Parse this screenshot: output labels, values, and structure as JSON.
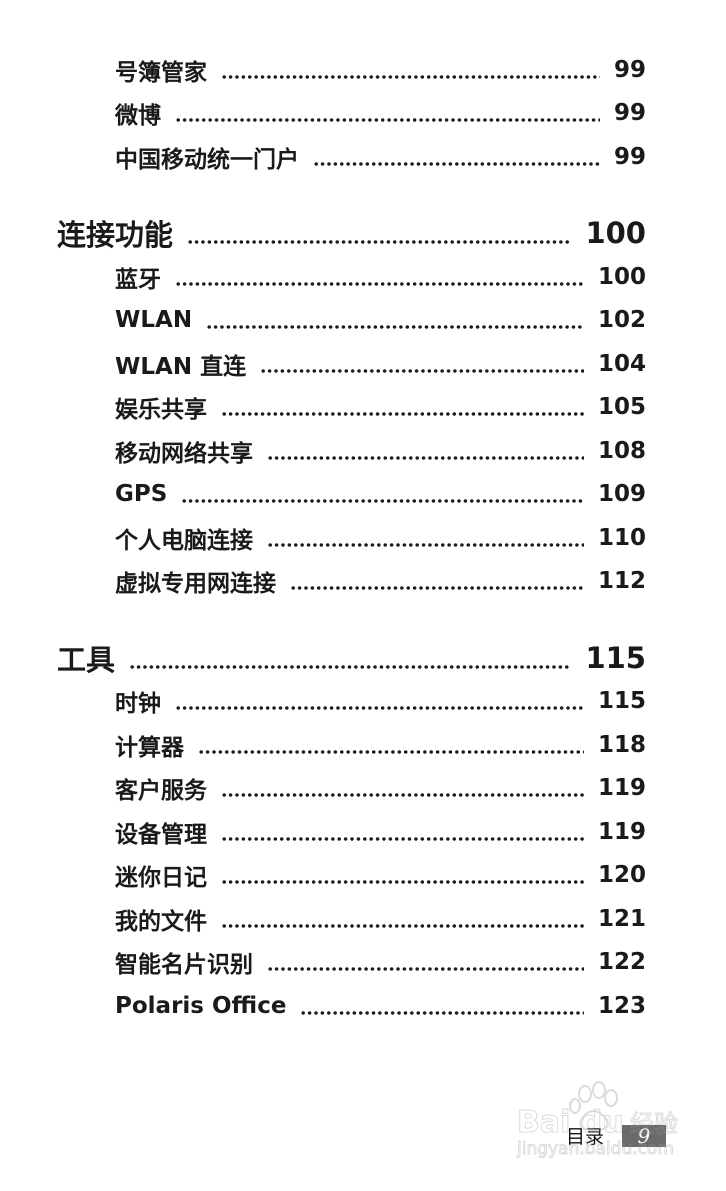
{
  "entries": [
    {
      "level": "sub",
      "title": "号簿管家",
      "page": "99"
    },
    {
      "level": "sub",
      "title": "微博",
      "page": "99"
    },
    {
      "level": "sub",
      "title": "中国移动统一门户",
      "page": "99"
    },
    {
      "level": "sec",
      "title": "连接功能",
      "page": "100"
    },
    {
      "level": "sub",
      "title": "蓝牙",
      "page": "100"
    },
    {
      "level": "sub",
      "title": "WLAN",
      "page": "102"
    },
    {
      "level": "sub",
      "title": "WLAN 直连",
      "page": "104"
    },
    {
      "level": "sub",
      "title": "娱乐共享",
      "page": "105"
    },
    {
      "level": "sub",
      "title": "移动网络共享",
      "page": "108"
    },
    {
      "level": "sub",
      "title": "GPS",
      "page": "109"
    },
    {
      "level": "sub",
      "title": "个人电脑连接",
      "page": "110"
    },
    {
      "level": "sub",
      "title": "虚拟专用网连接",
      "page": "112"
    },
    {
      "level": "sec",
      "title": "工具",
      "page": "115"
    },
    {
      "level": "sub",
      "title": "时钟",
      "page": "115"
    },
    {
      "level": "sub",
      "title": "计算器",
      "page": "118"
    },
    {
      "level": "sub",
      "title": "客户服务",
      "page": "119"
    },
    {
      "level": "sub",
      "title": "设备管理",
      "page": "119"
    },
    {
      "level": "sub",
      "title": "迷你日记",
      "page": "120"
    },
    {
      "level": "sub",
      "title": "我的文件",
      "page": "121"
    },
    {
      "level": "sub",
      "title": "智能名片识别",
      "page": "122"
    },
    {
      "level": "sub",
      "title": "Polaris Office",
      "page": "123"
    }
  ],
  "footer": {
    "label": "目录",
    "page_number": "9"
  },
  "watermark": {
    "text": "Baidu 经验",
    "url_text": "jingyan.baidu.com"
  }
}
